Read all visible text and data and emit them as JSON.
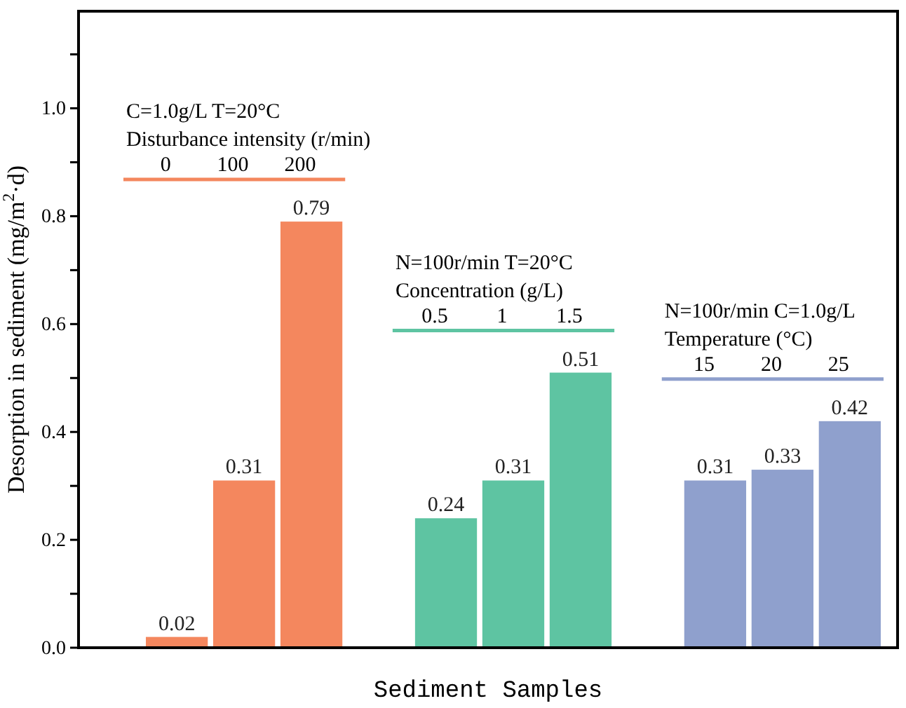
{
  "chart_data": {
    "type": "bar",
    "xlabel": "Sediment Samples",
    "ylabel": "Desorption in sediment (mg/m$^{2}$·d)",
    "categories": [
      "0",
      "100",
      "200",
      null,
      "0.5",
      "1",
      "1.5",
      null,
      "15",
      "20",
      "25"
    ],
    "series": [
      {
        "color": "#f4875e",
        "values": [
          0.02,
          0.31,
          0.79,
          null,
          null,
          null,
          null,
          null,
          null,
          null,
          null
        ]
      },
      {
        "color": "#5ec4a2",
        "values": [
          null,
          null,
          null,
          null,
          0.24,
          0.31,
          0.51,
          null,
          null,
          null,
          null
        ]
      },
      {
        "color": "#8fa0cd",
        "values": [
          null,
          null,
          null,
          null,
          null,
          null,
          null,
          null,
          0.31,
          0.33,
          0.42
        ]
      }
    ],
    "data_labels": true,
    "ylim": [
      0,
      1.18
    ],
    "yticks": [
      {
        "value": 0,
        "label": "0.0"
      },
      {
        "value": 0.1,
        "label": null
      },
      {
        "value": 0.2,
        "label": "0.2"
      },
      {
        "value": 0.3,
        "label": null
      },
      {
        "value": 0.4,
        "label": "0.4"
      },
      {
        "value": 0.5,
        "label": null
      },
      {
        "value": 0.6,
        "label": "0.6"
      },
      {
        "value": 0.7,
        "label": null
      },
      {
        "value": 0.8,
        "label": "0.8"
      },
      {
        "value": 0.9,
        "label": null
      },
      {
        "value": 1,
        "label": "1.0"
      },
      {
        "value": 1.1,
        "label": null
      }
    ],
    "annotations": [
      "C=1.0g/L T=20°C",
      "Disturbance intensity (r/min)",
      "N=100r/min T=20°C",
      "Concentration (g/L)",
      "N=100r/min C=1.0g/L",
      "Temperature (°C)"
    ]
  }
}
